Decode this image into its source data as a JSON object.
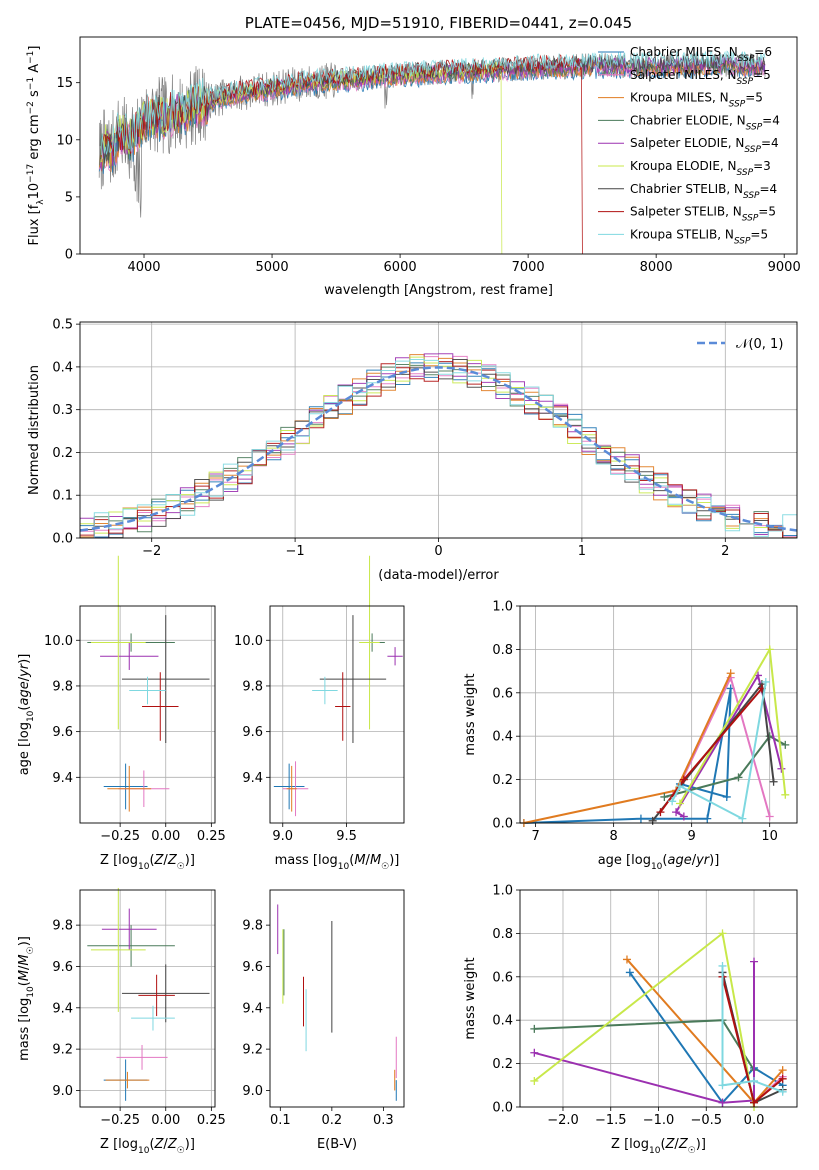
{
  "colors": {
    "chabrier_miles": "#1f77b4",
    "salpeter_miles": "#e377c2",
    "kroupa_miles": "#e07b20",
    "chabrier_elodie": "#4a7a5a",
    "salpeter_elodie": "#9b30b0",
    "kroupa_elodie": "#c8e84a",
    "chabrier_stelib": "#444444",
    "salpeter_stelib": "#b01010",
    "kroupa_stelib": "#7fd8e0",
    "gaussian": "#5b8bd8",
    "grid": "#b0b0b0"
  },
  "chart_data": [
    {
      "id": "spectrum",
      "type": "line",
      "title": "PLATE=0456, MJD=51910, FIBERID=0441, z=0.045",
      "xlabel": "wavelength [Angstrom, rest frame]",
      "ylabel": "Flux [fλ10⁻¹⁷ erg cm⁻² s⁻¹ A⁻¹]",
      "xlim": [
        3500,
        9100
      ],
      "ylim": [
        0,
        19
      ],
      "xticks": [
        4000,
        5000,
        6000,
        7000,
        8000,
        9000
      ],
      "yticks": [
        0,
        5,
        10,
        15
      ],
      "grid": false,
      "legend": "top-right",
      "observed_envelope": {
        "x": [
          3650,
          3700,
          3750,
          3800,
          3900,
          4000,
          4100,
          4200,
          4300,
          4400,
          4500,
          4700,
          5000,
          5300,
          5600,
          6000,
          6500,
          7000,
          7500,
          8000,
          8500,
          8850
        ],
        "y": [
          8.5,
          9.5,
          9.0,
          10.5,
          10.0,
          11.8,
          12.0,
          12.2,
          12.5,
          13.0,
          13.4,
          14.0,
          14.5,
          15.0,
          15.3,
          15.7,
          16.0,
          16.3,
          16.5,
          16.5,
          16.6,
          16.5
        ]
      },
      "series_names": [
        "Chabrier MILES, N_SSP=6",
        "Salpeter MILES, N_SSP=5",
        "Kroupa MILES, N_SSP=5",
        "Chabrier ELODIE, N_SSP=4",
        "Salpeter ELODIE, N_SSP=4",
        "Kroupa ELODIE, N_SSP=3",
        "Chabrier STELIB, N_SSP=4",
        "Salpeter STELIB, N_SSP=5",
        "Kroupa STELIB, N_SSP=5"
      ],
      "legend_labels": [
        {
          "a": "Chabrier MILES, N",
          "sub": "SSP",
          "b": "=6"
        },
        {
          "a": "Salpeter MILES, N",
          "sub": "SSP",
          "b": "=5"
        },
        {
          "a": "Kroupa MILES, N",
          "sub": "SSP",
          "b": "=5"
        },
        {
          "a": "Chabrier ELODIE, N",
          "sub": "SSP",
          "b": "=4"
        },
        {
          "a": "Salpeter ELODIE, N",
          "sub": "SSP",
          "b": "=4"
        },
        {
          "a": "Kroupa ELODIE, N",
          "sub": "SSP",
          "b": "=3"
        },
        {
          "a": "Chabrier STELIB, N",
          "sub": "SSP",
          "b": "=4"
        },
        {
          "a": "Salpeter STELIB, N",
          "sub": "SSP",
          "b": "=5"
        },
        {
          "a": "Kroupa STELIB, N",
          "sub": "SSP",
          "b": "=5"
        }
      ]
    },
    {
      "id": "residuals",
      "type": "line",
      "xlabel": "(data-model)/error",
      "ylabel": "Normed distribution",
      "xlim": [
        -2.5,
        2.5
      ],
      "ylim": [
        0,
        0.505
      ],
      "xticks": [
        -2,
        -1,
        0,
        1,
        2
      ],
      "yticks": [
        0.0,
        0.1,
        0.2,
        0.3,
        0.4,
        0.5
      ],
      "grid": true,
      "legend": "top-right",
      "legend_label": "𝒩(0, 1)",
      "bin_width": 0.1,
      "gaussian": {
        "name": "N(0,1)",
        "mean": 0,
        "sigma": 1
      }
    },
    {
      "id": "z_age",
      "type": "scatter",
      "xlabel": "Z [log10(Z/Z☉)]",
      "ylabel": "age [log10(age/yr)]",
      "xlim": [
        -0.47,
        0.27
      ],
      "ylim": [
        9.2,
        10.15
      ],
      "xticks": [
        -0.25,
        0.0,
        0.25
      ],
      "yticks": [
        9.4,
        9.6,
        9.8,
        10.0
      ],
      "grid": true,
      "points": [
        {
          "s": "chabrier_miles",
          "x": -0.22,
          "y": 9.36,
          "xerr": 0.12,
          "yerr": 0.1
        },
        {
          "s": "salpeter_miles",
          "x": -0.12,
          "y": 9.35,
          "xerr": 0.14,
          "yerr": 0.08
        },
        {
          "s": "kroupa_miles",
          "x": -0.2,
          "y": 9.35,
          "xerr": 0.12,
          "yerr": 0.1
        },
        {
          "s": "chabrier_elodie",
          "x": -0.19,
          "y": 9.99,
          "xerr": 0.24,
          "yerr": 0.04
        },
        {
          "s": "salpeter_elodie",
          "x": -0.2,
          "y": 9.93,
          "xerr": 0.16,
          "yerr": 0.06
        },
        {
          "s": "kroupa_elodie",
          "x": -0.26,
          "y": 9.99,
          "xerr": 0.15,
          "yerr": 0.38
        },
        {
          "s": "chabrier_stelib",
          "x": 0.0,
          "y": 9.83,
          "xerr": 0.24,
          "yerr": 0.28
        },
        {
          "s": "salpeter_stelib",
          "x": -0.03,
          "y": 9.71,
          "xerr": 0.1,
          "yerr": 0.15
        },
        {
          "s": "kroupa_stelib",
          "x": -0.1,
          "y": 9.78,
          "xerr": 0.1,
          "yerr": 0.06
        }
      ]
    },
    {
      "id": "mass_age",
      "type": "scatter",
      "xlabel": "mass [log10(M/M☉)]",
      "ylabel": "",
      "xlim": [
        8.9,
        9.95
      ],
      "ylim": [
        9.2,
        10.15
      ],
      "xticks": [
        9.0,
        9.5
      ],
      "yticks": [
        9.4,
        9.6,
        9.8,
        10.0
      ],
      "grid": true,
      "points": [
        {
          "s": "chabrier_miles",
          "x": 9.05,
          "y": 9.36,
          "xerr": 0.12,
          "yerr": 0.1
        },
        {
          "s": "salpeter_miles",
          "x": 9.1,
          "y": 9.35,
          "xerr": 0.1,
          "yerr": 0.12
        },
        {
          "s": "kroupa_miles",
          "x": 9.07,
          "y": 9.35,
          "xerr": 0.04,
          "yerr": 0.1
        },
        {
          "s": "chabrier_elodie",
          "x": 9.7,
          "y": 9.99,
          "xerr": 0.1,
          "yerr": 0.04
        },
        {
          "s": "salpeter_elodie",
          "x": 9.88,
          "y": 9.93,
          "xerr": 0.06,
          "yerr": 0.04
        },
        {
          "s": "kroupa_elodie",
          "x": 9.68,
          "y": 9.99,
          "xerr": 0.08,
          "yerr": 0.38
        },
        {
          "s": "chabrier_stelib",
          "x": 9.55,
          "y": 9.83,
          "xerr": 0.26,
          "yerr": 0.28
        },
        {
          "s": "salpeter_stelib",
          "x": 9.47,
          "y": 9.71,
          "xerr": 0.06,
          "yerr": 0.15
        },
        {
          "s": "kroupa_stelib",
          "x": 9.33,
          "y": 9.78,
          "xerr": 0.1,
          "yerr": 0.06
        }
      ]
    },
    {
      "id": "age_weight",
      "type": "line",
      "xlabel": "age [log10(age/yr)]",
      "ylabel": "mass weight",
      "xlim": [
        6.8,
        10.35
      ],
      "ylim": [
        0,
        1
      ],
      "xticks": [
        7,
        8,
        9,
        10
      ],
      "yticks": [
        0.0,
        0.2,
        0.4,
        0.6,
        0.8,
        1.0
      ],
      "grid": true,
      "series": [
        {
          "s": "chabrier_miles",
          "x": [
            6.85,
            8.35,
            9.2,
            9.5,
            9.45,
            8.85
          ],
          "y": [
            0.0,
            0.02,
            0.02,
            0.62,
            0.12,
            0.18
          ]
        },
        {
          "s": "salpeter_miles",
          "x": [
            8.8,
            9.5,
            10.0
          ],
          "y": [
            0.14,
            0.67,
            0.03
          ]
        },
        {
          "s": "kroupa_miles",
          "x": [
            6.85,
            8.8,
            9.5
          ],
          "y": [
            0.0,
            0.15,
            0.69
          ]
        },
        {
          "s": "chabrier_elodie",
          "x": [
            8.65,
            9.6,
            10.0,
            10.2
          ],
          "y": [
            0.12,
            0.21,
            0.4,
            0.36
          ]
        },
        {
          "s": "salpeter_elodie",
          "x": [
            8.9,
            8.8,
            9.85,
            10.15
          ],
          "y": [
            0.03,
            0.05,
            0.68,
            0.25
          ]
        },
        {
          "s": "kroupa_elodie",
          "x": [
            8.85,
            10.0,
            10.2
          ],
          "y": [
            0.09,
            0.8,
            0.13
          ]
        },
        {
          "s": "chabrier_stelib",
          "x": [
            8.5,
            9.9,
            10.05
          ],
          "y": [
            0.01,
            0.64,
            0.19
          ]
        },
        {
          "s": "salpeter_stelib",
          "x": [
            8.6,
            8.9,
            9.9
          ],
          "y": [
            0.05,
            0.2,
            0.62
          ]
        },
        {
          "s": "kroupa_stelib",
          "x": [
            8.75,
            8.85,
            9.65,
            9.95
          ],
          "y": [
            0.1,
            0.17,
            0.02,
            0.65
          ]
        }
      ]
    },
    {
      "id": "z_mass",
      "type": "scatter",
      "xlabel": "Z [log10(Z/Z☉)]",
      "ylabel": "mass [log10(M/M☉)]",
      "xlim": [
        -0.47,
        0.27
      ],
      "ylim": [
        8.92,
        9.97
      ],
      "xticks": [
        -0.25,
        0.0,
        0.25
      ],
      "yticks": [
        9.0,
        9.2,
        9.4,
        9.6,
        9.8
      ],
      "grid": true,
      "points": [
        {
          "s": "chabrier_miles",
          "x": -0.22,
          "y": 9.05,
          "xerr": 0.12,
          "yerr": 0.1
        },
        {
          "s": "salpeter_miles",
          "x": -0.13,
          "y": 9.16,
          "xerr": 0.14,
          "yerr": 0.06
        },
        {
          "s": "kroupa_miles",
          "x": -0.21,
          "y": 9.05,
          "xerr": 0.12,
          "yerr": 0.04
        },
        {
          "s": "chabrier_elodie",
          "x": -0.19,
          "y": 9.7,
          "xerr": 0.24,
          "yerr": 0.1
        },
        {
          "s": "salpeter_elodie",
          "x": -0.2,
          "y": 9.78,
          "xerr": 0.15,
          "yerr": 0.1
        },
        {
          "s": "kroupa_elodie",
          "x": -0.26,
          "y": 9.68,
          "xerr": 0.15,
          "yerr": 0.3
        },
        {
          "s": "chabrier_stelib",
          "x": 0.0,
          "y": 9.47,
          "xerr": 0.24,
          "yerr": 0.14
        },
        {
          "s": "salpeter_stelib",
          "x": -0.05,
          "y": 9.46,
          "xerr": 0.1,
          "yerr": 0.1
        },
        {
          "s": "kroupa_stelib",
          "x": -0.07,
          "y": 9.35,
          "xerr": 0.12,
          "yerr": 0.06
        }
      ]
    },
    {
      "id": "ebv_mass",
      "type": "scatter",
      "xlabel": "E(B-V)",
      "ylabel": "",
      "xlim": [
        0.08,
        0.34
      ],
      "ylim": [
        8.92,
        9.97
      ],
      "xticks": [
        0.1,
        0.2,
        0.3
      ],
      "yticks": [
        9.0,
        9.2,
        9.4,
        9.6,
        9.8
      ],
      "grid": false,
      "points": [
        {
          "s": "chabrier_miles",
          "x": 0.325,
          "y": 9.0,
          "xerr": 0.0,
          "yerr": 0.05
        },
        {
          "s": "salpeter_miles",
          "x": 0.325,
          "y": 9.16,
          "xerr": 0.0,
          "yerr": 0.1
        },
        {
          "s": "kroupa_miles",
          "x": 0.322,
          "y": 9.05,
          "xerr": 0.0,
          "yerr": 0.05
        },
        {
          "s": "chabrier_elodie",
          "x": 0.107,
          "y": 9.62,
          "xerr": 0.0,
          "yerr": 0.16
        },
        {
          "s": "salpeter_elodie",
          "x": 0.095,
          "y": 9.78,
          "xerr": 0.0,
          "yerr": 0.12
        },
        {
          "s": "kroupa_elodie",
          "x": 0.105,
          "y": 9.6,
          "xerr": 0.0,
          "yerr": 0.18
        },
        {
          "s": "chabrier_stelib",
          "x": 0.2,
          "y": 9.55,
          "xerr": 0.0,
          "yerr": 0.27
        },
        {
          "s": "salpeter_stelib",
          "x": 0.145,
          "y": 9.43,
          "xerr": 0.0,
          "yerr": 0.12
        },
        {
          "s": "kroupa_stelib",
          "x": 0.15,
          "y": 9.34,
          "xerr": 0.0,
          "yerr": 0.15
        }
      ]
    },
    {
      "id": "z_weight",
      "type": "line",
      "xlabel": "Z [log10(Z/Z☉)]",
      "ylabel": "mass weight",
      "xlim": [
        -2.45,
        0.45
      ],
      "ylim": [
        0,
        1
      ],
      "xticks": [
        -2.0,
        -1.5,
        -1.0,
        -0.5,
        0.0
      ],
      "yticks": [
        0.0,
        0.2,
        0.4,
        0.6,
        0.8,
        1.0
      ],
      "grid": true,
      "series": [
        {
          "s": "chabrier_miles",
          "x": [
            -1.3,
            -0.33,
            0.0,
            0.3
          ],
          "y": [
            0.62,
            0.02,
            0.18,
            0.1
          ]
        },
        {
          "s": "salpeter_miles",
          "x": [
            -0.33,
            0.0,
            0.3
          ],
          "y": [
            0.62,
            0.02,
            0.14
          ]
        },
        {
          "s": "kroupa_miles",
          "x": [
            -1.33,
            0.0,
            0.3
          ],
          "y": [
            0.68,
            0.02,
            0.17
          ]
        },
        {
          "s": "chabrier_elodie",
          "x": [
            -2.3,
            -0.33,
            0.0
          ],
          "y": [
            0.36,
            0.4,
            0.17
          ]
        },
        {
          "s": "salpeter_elodie",
          "x": [
            -2.3,
            -0.33,
            0.0,
            0.0
          ],
          "y": [
            0.25,
            0.02,
            0.03,
            0.67
          ]
        },
        {
          "s": "kroupa_elodie",
          "x": [
            -2.3,
            -0.33,
            0.0
          ],
          "y": [
            0.12,
            0.8,
            0.0
          ]
        },
        {
          "s": "chabrier_stelib",
          "x": [
            -0.33,
            0.0,
            0.3
          ],
          "y": [
            0.62,
            0.02,
            0.08
          ]
        },
        {
          "s": "salpeter_stelib",
          "x": [
            -0.33,
            0.0,
            0.3
          ],
          "y": [
            0.6,
            0.02,
            0.13
          ]
        },
        {
          "s": "kroupa_stelib",
          "x": [
            -0.33,
            -0.33,
            0.0,
            0.3
          ],
          "y": [
            0.65,
            0.1,
            0.12,
            0.07
          ]
        }
      ]
    }
  ]
}
